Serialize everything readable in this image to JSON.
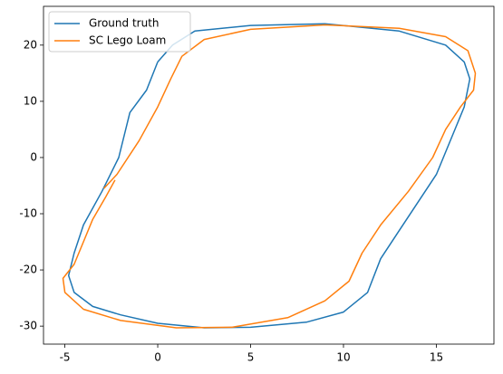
{
  "chart_data": {
    "type": "line",
    "series": [
      {
        "name": "Ground truth",
        "color": "#1f77b4",
        "x": [
          0,
          0.8,
          2,
          5,
          9,
          13,
          15.5,
          16.5,
          16.8,
          16.5,
          16,
          15,
          14,
          13,
          12,
          11.3,
          10,
          8,
          5,
          2.5,
          0,
          -2,
          -3.5,
          -4.5,
          -4.8,
          -4.5,
          -4,
          -3,
          -2.1,
          -1.5,
          -0.6,
          0
        ],
        "values": [
          17,
          20,
          22.5,
          23.5,
          23.8,
          22.5,
          20,
          17,
          14,
          9,
          5,
          -3,
          -8,
          -13,
          -18,
          -24,
          -27.5,
          -29.3,
          -30.2,
          -30.3,
          -29.5,
          -28,
          -26.5,
          -24,
          -21,
          -17,
          -12,
          -6,
          0,
          8,
          12,
          17
        ]
      },
      {
        "name": "SC Lego Loam",
        "color": "#ff7f0e",
        "x": [
          -2.9,
          -2.2,
          -1,
          0,
          0.7,
          1.3,
          2.5,
          5,
          9,
          13,
          15.5,
          16.7,
          17.1,
          17,
          16.3,
          15.5,
          14.8,
          13.5,
          12,
          11,
          10.3,
          9,
          7,
          4,
          1,
          -2,
          -4,
          -5,
          -5.1,
          -4.5,
          -4,
          -3.5,
          -2.8,
          -2.3
        ],
        "values": [
          -5.5,
          -3,
          3,
          9,
          14,
          18,
          21,
          22.8,
          23.6,
          23,
          21.5,
          19,
          15,
          12,
          9,
          5,
          0,
          -6,
          -12,
          -17,
          -22,
          -25.5,
          -28.5,
          -30.2,
          -30.3,
          -29,
          -27,
          -24,
          -21.5,
          -19,
          -15,
          -11,
          -7,
          -4
        ]
      }
    ],
    "xlim": [
      -6.15,
      18.1
    ],
    "ylim": [
      -33.2,
      26.9
    ],
    "xticks": [
      -5,
      0,
      5,
      10,
      15
    ],
    "yticks": [
      -30,
      -20,
      -10,
      0,
      10,
      20
    ],
    "legend": "upper left"
  }
}
